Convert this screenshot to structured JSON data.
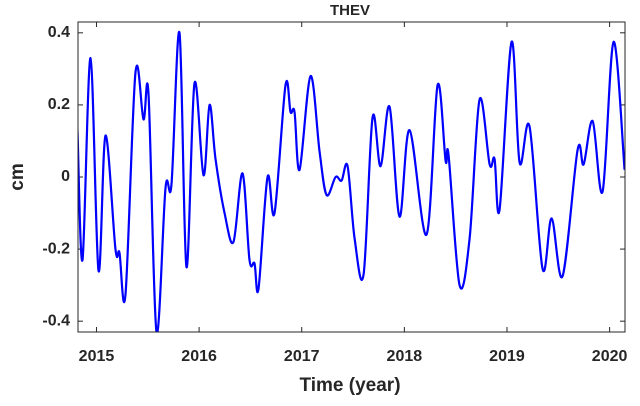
{
  "chart_data": {
    "type": "line",
    "title": "THEV",
    "x_label": "Time (year)",
    "y_label": "cm",
    "xlim": [
      2014.82,
      2020.15
    ],
    "xticks": [
      2015,
      2016,
      2017,
      2018,
      2019,
      2020
    ],
    "ylim": [
      -0.43,
      0.43
    ],
    "yticks": [
      -0.4,
      -0.2,
      0,
      0.2,
      0.4
    ],
    "series": [
      {
        "color": "#0000ff",
        "x": [
          2014.815,
          2014.864,
          2014.942,
          2015.02,
          2015.088,
          2015.185,
          2015.224,
          2015.283,
          2015.38,
          2015.458,
          2015.507,
          2015.585,
          2015.673,
          2015.731,
          2015.809,
          2015.877,
          2015.955,
          2016.043,
          2016.102,
          2016.16,
          2016.248,
          2016.335,
          2016.423,
          2016.491,
          2016.54,
          2016.579,
          2016.667,
          2016.735,
          2016.842,
          2016.891,
          2016.93,
          2016.979,
          2017.086,
          2017.174,
          2017.242,
          2017.33,
          2017.388,
          2017.447,
          2017.515,
          2017.603,
          2017.69,
          2017.768,
          2017.856,
          2017.953,
          2018.051,
          2018.216,
          2018.324,
          2018.402,
          2018.431,
          2018.538,
          2018.636,
          2018.733,
          2018.831,
          2018.879,
          2018.928,
          2019.045,
          2019.123,
          2019.22,
          2019.347,
          2019.435,
          2019.542,
          2019.688,
          2019.747,
          2019.835,
          2019.932,
          2020.039,
          2020.146
        ],
        "values": [
          0.13,
          -0.23,
          0.33,
          -0.26,
          0.115,
          -0.2,
          -0.21,
          -0.325,
          0.29,
          0.16,
          0.23,
          -0.43,
          -0.03,
          -0.02,
          0.4,
          -0.25,
          0.26,
          0.005,
          0.2,
          0.05,
          -0.1,
          -0.18,
          0.01,
          -0.23,
          -0.24,
          -0.31,
          0.0,
          -0.1,
          0.255,
          0.18,
          0.18,
          0.02,
          0.28,
          0.07,
          -0.05,
          0.0,
          -0.01,
          0.03,
          -0.17,
          -0.27,
          0.165,
          0.03,
          0.195,
          -0.11,
          0.13,
          -0.16,
          0.255,
          0.045,
          0.06,
          -0.3,
          -0.17,
          0.215,
          0.035,
          0.05,
          -0.09,
          0.375,
          0.04,
          0.14,
          -0.255,
          -0.115,
          -0.275,
          0.075,
          0.035,
          0.155,
          -0.04,
          0.375,
          0.02
        ]
      }
    ]
  }
}
